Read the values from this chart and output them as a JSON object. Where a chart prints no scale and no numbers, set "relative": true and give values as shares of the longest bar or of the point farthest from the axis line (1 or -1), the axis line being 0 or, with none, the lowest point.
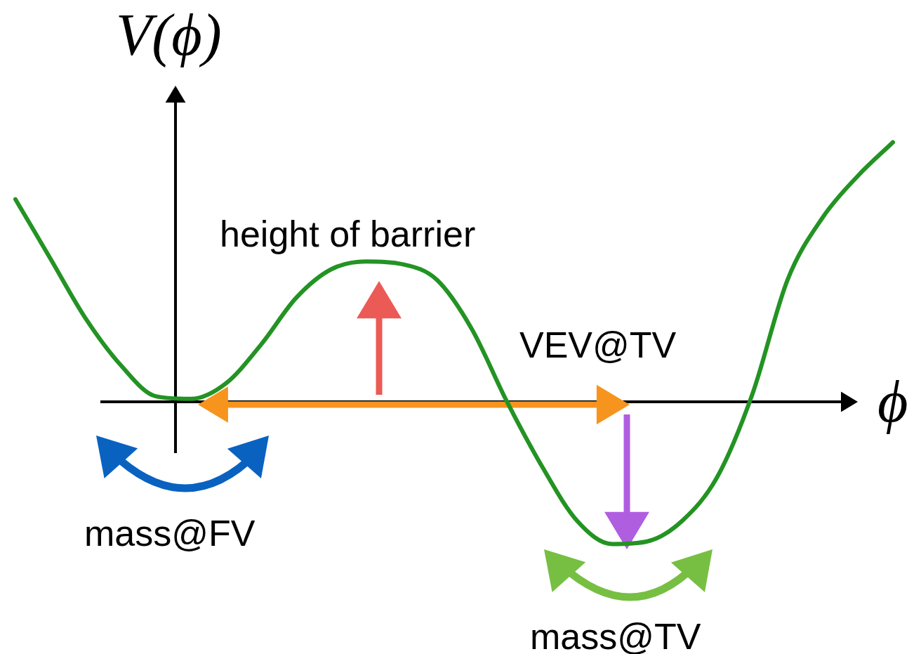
{
  "chart_data": {
    "type": "line",
    "xlabel": "ϕ",
    "ylabel": "V(ϕ)",
    "categories": [
      null,
      null,
      null,
      null,
      null,
      null,
      null,
      null,
      null,
      null,
      null,
      null,
      null,
      null,
      null,
      null,
      null,
      null,
      null,
      null,
      null,
      null,
      null,
      null,
      null,
      null
    ],
    "values": [
      0.78,
      0.55,
      0.32,
      0.14,
      0.02,
      0.01,
      0.07,
      0.22,
      0.4,
      0.51,
      0.54,
      0.53,
      0.47,
      0.28,
      0,
      -0.25,
      -0.46,
      -0.55,
      -0.54,
      -0.46,
      -0.29,
      0.03,
      0.47,
      0.71,
      0.87,
      1.0
    ],
    "color": "#239323",
    "relative": true,
    "marker": "none",
    "line_style": "solid",
    "annotations": [
      "height of barrier",
      "VEV@TV",
      "mass@FV",
      "mass@TV"
    ]
  }
}
